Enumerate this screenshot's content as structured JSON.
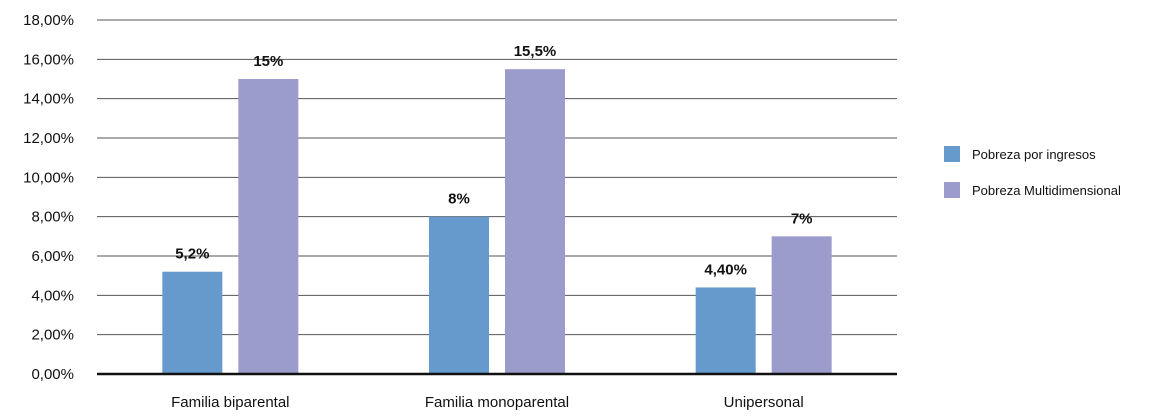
{
  "chart_data": {
    "type": "bar",
    "categories": [
      "Familia biparental",
      "Familia monoparental",
      "Unipersonal"
    ],
    "series": [
      {
        "name": "Pobreza por ingresos",
        "values": [
          5.2,
          8.0,
          4.4
        ],
        "labels": [
          "5,2%",
          "8%",
          "4,40%"
        ],
        "color": "#6699cc"
      },
      {
        "name": "Pobreza Multidimensional",
        "values": [
          15.0,
          15.5,
          7.0
        ],
        "labels": [
          "15%",
          "15,5%",
          "7%"
        ],
        "color": "#9b9bcc"
      }
    ],
    "yticks": [
      "0,00%",
      "2,00%",
      "4,00%",
      "6,00%",
      "8,00%",
      "10,00%",
      "12,00%",
      "14,00%",
      "16,00%",
      "18,00%"
    ],
    "ylim": [
      0,
      18
    ],
    "grid": true,
    "legend_position": "right"
  }
}
